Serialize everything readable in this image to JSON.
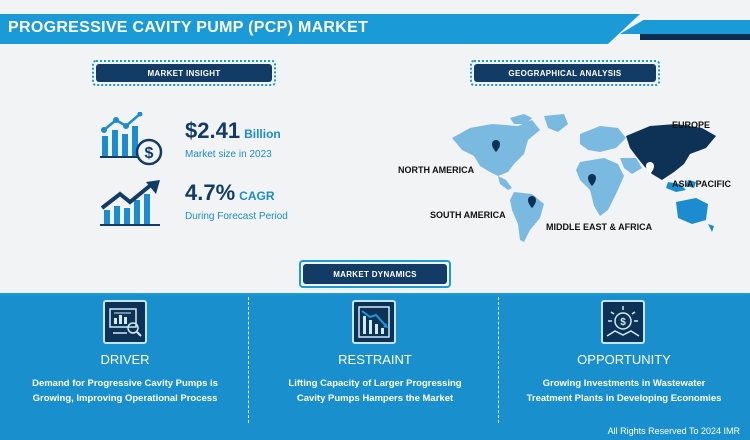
{
  "header": {
    "title": "PROGRESSIVE CAVITY PUMP (PCP) MARKET"
  },
  "insight": {
    "label": "MARKET INSIGHT",
    "size_value": "$2.41",
    "size_unit": "Billion",
    "size_caption": "Market size in 2023",
    "cagr_value": "4.7%",
    "cagr_unit": "CAGR",
    "cagr_caption": "During Forecast Period"
  },
  "geo": {
    "label": "GEOGRAPHICAL ANALYSIS",
    "regions": [
      "EUROPE",
      "NORTH AMERICA",
      "ASIA PACIFIC",
      "SOUTH AMERICA",
      "MIDDLE EAST & AFRICA"
    ]
  },
  "dynamics": {
    "label": "MARKET DYNAMICS",
    "panels": [
      {
        "title": "DRIVER",
        "line1": "Demand for Progressive Cavity Pumps is",
        "line2": "Growing, Improving Operational Process"
      },
      {
        "title": "RESTRAINT",
        "line1": "Lifting Capacity of Larger Progressing",
        "line2": "Cavity Pumps Hampers the Market"
      },
      {
        "title": "OPPORTUNITY",
        "line1": "Growing Investments in Wastewater",
        "line2": "Treatment Plants in Developing Economies"
      }
    ]
  },
  "footer": {
    "text": "All Rights Reserved To 2024 IMR"
  }
}
